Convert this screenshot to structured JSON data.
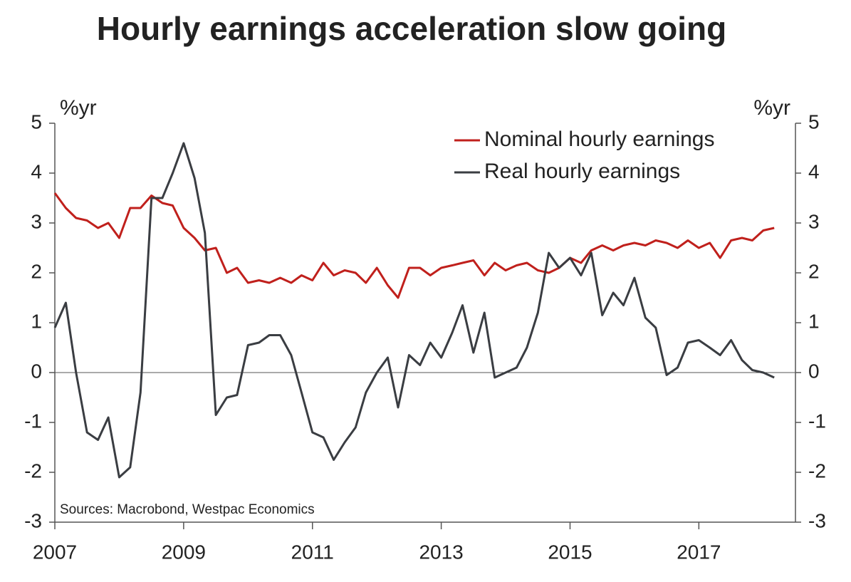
{
  "chart_data": {
    "type": "line",
    "title": "Hourly earnings acceleration slow going",
    "y_unit_left": "%yr",
    "y_unit_right": "%yr",
    "annotation": "Sources: Macrobond, Westpac Economics",
    "legend": "upper right",
    "xlim": [
      2007,
      2018.5
    ],
    "xticks": [
      2007,
      2009,
      2011,
      2013,
      2015,
      2017
    ],
    "ylim": [
      -3,
      5
    ],
    "yticks": [
      -3,
      -2,
      -1,
      0,
      1,
      2,
      3,
      4,
      5
    ],
    "y2lim": [
      -3,
      5
    ],
    "y2ticks": [
      -3,
      -2,
      -1,
      0,
      1,
      2,
      3,
      4,
      5
    ],
    "x": [
      2007.0,
      2007.17,
      2007.33,
      2007.5,
      2007.67,
      2007.83,
      2008.0,
      2008.17,
      2008.33,
      2008.5,
      2008.67,
      2008.83,
      2009.0,
      2009.17,
      2009.33,
      2009.5,
      2009.67,
      2009.83,
      2010.0,
      2010.17,
      2010.33,
      2010.5,
      2010.67,
      2010.83,
      2011.0,
      2011.17,
      2011.33,
      2011.5,
      2011.67,
      2011.83,
      2012.0,
      2012.17,
      2012.33,
      2012.5,
      2012.67,
      2012.83,
      2013.0,
      2013.17,
      2013.33,
      2013.5,
      2013.67,
      2013.83,
      2014.0,
      2014.17,
      2014.33,
      2014.5,
      2014.67,
      2014.83,
      2015.0,
      2015.17,
      2015.33,
      2015.5,
      2015.67,
      2015.83,
      2016.0,
      2016.17,
      2016.33,
      2016.5,
      2016.67,
      2016.83,
      2017.0,
      2017.17,
      2017.33,
      2017.5,
      2017.67,
      2017.83,
      2018.0,
      2018.17
    ],
    "series": [
      {
        "name": "Nominal hourly earnings",
        "color": "#c0201c",
        "values": [
          3.6,
          3.3,
          3.1,
          3.05,
          2.9,
          3.0,
          2.7,
          3.3,
          3.3,
          3.55,
          3.4,
          3.35,
          2.9,
          2.7,
          2.45,
          2.5,
          2.0,
          2.1,
          1.8,
          1.85,
          1.8,
          1.9,
          1.8,
          1.95,
          1.85,
          2.2,
          1.95,
          2.05,
          2.0,
          1.8,
          2.1,
          1.75,
          1.5,
          2.1,
          2.1,
          1.95,
          2.1,
          2.15,
          2.2,
          2.25,
          1.95,
          2.2,
          2.05,
          2.15,
          2.2,
          2.05,
          2.0,
          2.1,
          2.3,
          2.2,
          2.45,
          2.55,
          2.45,
          2.55,
          2.6,
          2.55,
          2.65,
          2.6,
          2.5,
          2.65,
          2.5,
          2.6,
          2.3,
          2.65,
          2.7,
          2.65,
          2.85,
          2.9
        ]
      },
      {
        "name": "Real hourly earnings",
        "color": "#3a3d42",
        "values": [
          0.9,
          1.4,
          0.0,
          -1.2,
          -1.35,
          -0.9,
          -2.1,
          -1.9,
          -0.4,
          3.5,
          3.5,
          4.0,
          4.6,
          3.9,
          2.8,
          -0.85,
          -0.5,
          -0.45,
          0.55,
          0.6,
          0.75,
          0.75,
          0.35,
          -0.4,
          -1.2,
          -1.3,
          -1.75,
          -1.4,
          -1.1,
          -0.4,
          0.0,
          0.3,
          -0.7,
          0.35,
          0.15,
          0.6,
          0.3,
          0.8,
          1.35,
          0.4,
          1.2,
          -0.1,
          0.0,
          0.1,
          0.5,
          1.2,
          2.4,
          2.1,
          2.3,
          1.95,
          2.4,
          1.15,
          1.6,
          1.35,
          1.9,
          1.1,
          0.9,
          -0.05,
          0.1,
          0.6,
          0.65,
          0.5,
          0.35,
          0.65,
          0.25,
          0.05,
          0.0,
          -0.1
        ]
      }
    ]
  }
}
